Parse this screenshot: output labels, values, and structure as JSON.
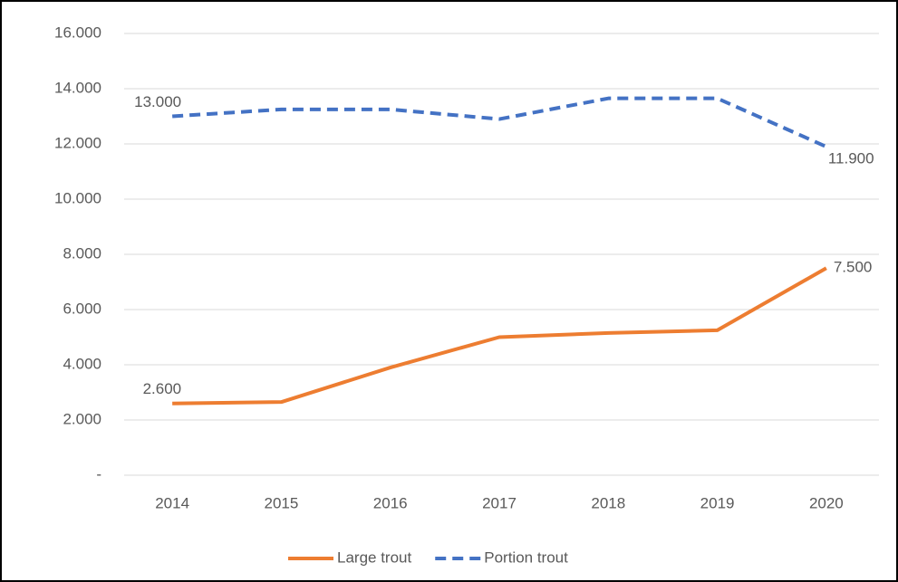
{
  "chart_data": {
    "type": "line",
    "categories": [
      "2014",
      "2015",
      "2016",
      "2017",
      "2018",
      "2019",
      "2020"
    ],
    "series": [
      {
        "name": "Large trout",
        "color": "#ed7d31",
        "dash": false,
        "values": [
          2600,
          2650,
          3900,
          5000,
          5150,
          5250,
          7500
        ],
        "value_labels": [
          "2.600",
          null,
          null,
          null,
          null,
          null,
          "7.500"
        ]
      },
      {
        "name": "Portion trout",
        "color": "#4472c4",
        "dash": true,
        "values": [
          13000,
          13250,
          13250,
          12900,
          13650,
          13650,
          11900
        ],
        "value_labels": [
          "13.000",
          null,
          null,
          null,
          null,
          null,
          "11.900"
        ]
      }
    ],
    "ylim": [
      0,
      16000
    ],
    "yticks": [
      {
        "value": 0,
        "label": "-"
      },
      {
        "value": 2000,
        "label": "2.000"
      },
      {
        "value": 4000,
        "label": "4.000"
      },
      {
        "value": 6000,
        "label": "6.000"
      },
      {
        "value": 8000,
        "label": "8.000"
      },
      {
        "value": 10000,
        "label": "10.000"
      },
      {
        "value": 12000,
        "label": "12.000"
      },
      {
        "value": 14000,
        "label": "14.000"
      },
      {
        "value": 16000,
        "label": "16.000"
      }
    ],
    "grid": true,
    "legend": "bottom"
  }
}
